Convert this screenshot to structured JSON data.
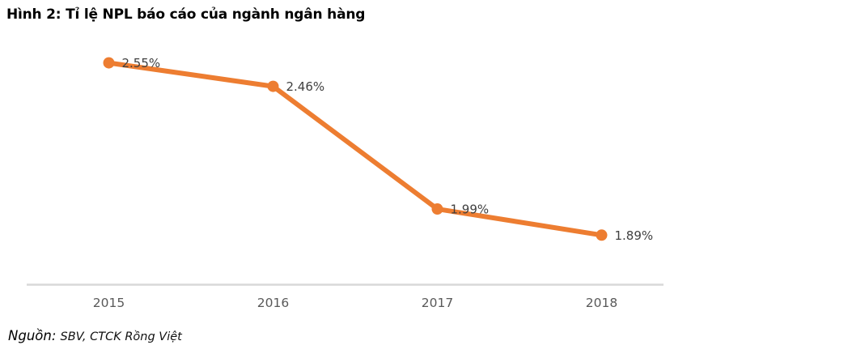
{
  "title": "Hình 2: Tỉ lệ NPL báo cáo của ngành ngân hàng",
  "source": {
    "label": "Nguồn:",
    "text": "SBV, CTCK Rồng Việt"
  },
  "colors": {
    "line": "#ED7D31",
    "marker": "#ED7D31",
    "data_label": "#404040",
    "axis_label": "#595959",
    "axis_line": "#D9D9D9",
    "title": "#000000"
  },
  "chart_data": {
    "type": "line",
    "title": "Hình 2: Tỉ lệ NPL báo cáo của ngành ngân hàng",
    "categories": [
      "2015",
      "2016",
      "2017",
      "2018"
    ],
    "values": [
      2.55,
      2.46,
      1.99,
      1.89
    ],
    "data_labels": [
      "2.55%",
      "2.46%",
      "1.99%",
      "1.89%"
    ],
    "xlabel": "",
    "ylabel": "",
    "ylim": [
      1.7,
      2.6
    ],
    "grid": false,
    "legend": false,
    "y_axis_visible": false,
    "marker": "circle"
  }
}
